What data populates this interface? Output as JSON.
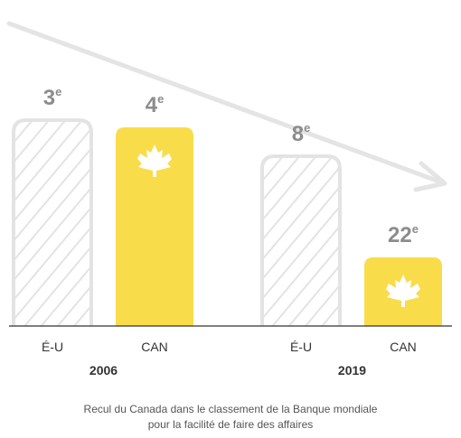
{
  "chart_data": {
    "type": "bar",
    "title": "",
    "groups": [
      {
        "year": "2006",
        "bars": [
          {
            "category": "É-U",
            "rank": 3,
            "rank_label": "3",
            "suffix": "e",
            "style": "hatched"
          },
          {
            "category": "CAN",
            "rank": 4,
            "rank_label": "4",
            "suffix": "e",
            "style": "filled-maple-leaf"
          }
        ]
      },
      {
        "year": "2019",
        "bars": [
          {
            "category": "É-U",
            "rank": 8,
            "rank_label": "8",
            "suffix": "e",
            "style": "hatched"
          },
          {
            "category": "CAN",
            "rank": 22,
            "rank_label": "22",
            "suffix": "e",
            "style": "filled-maple-leaf"
          }
        ]
      }
    ],
    "trend_arrow": "downward",
    "colors": {
      "canada": "#F9DC4A",
      "usa_outline": "#E3E3E3",
      "usa_hatch": "#E3E3E3",
      "rank_label": "#8C8C8C",
      "axis": "#333333",
      "arrow": "#E4E4E4",
      "leaf": "#FFFFFF"
    }
  },
  "caption": {
    "line1": "Recul du Canada dans le classement de la Banque mondiale",
    "line2": "pour la facilité de faire des affaires"
  }
}
